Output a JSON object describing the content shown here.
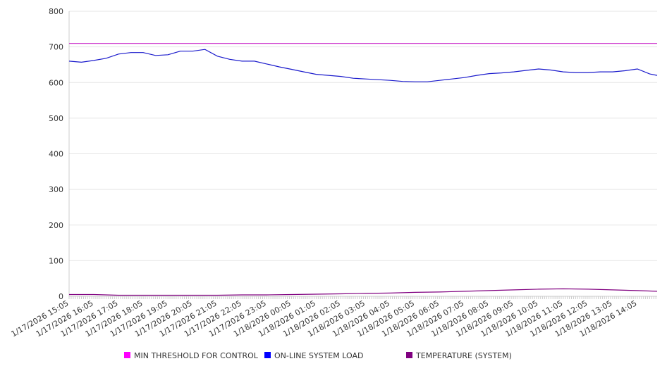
{
  "chart_data": {
    "type": "line",
    "title": "",
    "xlabel": "",
    "ylabel": "",
    "ylim": [
      0,
      800
    ],
    "yticks": [
      0,
      100,
      200,
      300,
      400,
      500,
      600,
      700,
      800
    ],
    "x_unit": "hours since 1/17/2026 15:05",
    "xlim": [
      0,
      23.8
    ],
    "xtick_labels": [
      "1/17/2026 15:05",
      "1/17/2026 16:05",
      "1/17/2026 17:05",
      "1/17/2026 18:05",
      "1/17/2026 19:05",
      "1/17/2026 20:05",
      "1/17/2026 21:05",
      "1/17/2026 22:05",
      "1/17/2026 23:05",
      "1/18/2026 00:05",
      "1/18/2026 01:05",
      "1/18/2026 02:05",
      "1/18/2026 03:05",
      "1/18/2026 04:05",
      "1/18/2026 05:05",
      "1/18/2026 06:05",
      "1/18/2026 07:05",
      "1/18/2026 08:05",
      "1/18/2026 09:05",
      "1/18/2026 10:05",
      "1/18/2026 11:05",
      "1/18/2026 12:05",
      "1/18/2026 13:05",
      "1/18/2026 14:05"
    ],
    "grid": true,
    "legend_position": "bottom",
    "series": [
      {
        "name": "MIN THRESHOLD FOR CONTROL",
        "color": "#ff00ff",
        "line_color": "#cc33cc",
        "x": [
          0,
          23.8
        ],
        "values": [
          710,
          710
        ]
      },
      {
        "name": "ON-LINE SYSTEM LOAD",
        "color": "#0000ff",
        "line_color": "#1a1acc",
        "x": [
          0,
          0.5,
          1,
          1.5,
          2,
          2.5,
          3,
          3.5,
          4,
          4.5,
          5,
          5.5,
          6,
          6.5,
          7,
          7.5,
          8,
          8.5,
          9,
          9.5,
          10,
          10.5,
          11,
          11.5,
          12,
          12.5,
          13,
          13.5,
          14,
          14.5,
          15,
          15.5,
          16,
          16.5,
          17,
          17.5,
          18,
          18.5,
          19,
          19.5,
          20,
          20.5,
          21,
          21.5,
          22,
          22.5,
          23,
          23.5,
          23.8
        ],
        "values": [
          660,
          657,
          662,
          668,
          680,
          684,
          684,
          676,
          678,
          688,
          688,
          693,
          674,
          665,
          660,
          660,
          652,
          644,
          637,
          630,
          623,
          620,
          617,
          612,
          610,
          608,
          606,
          603,
          602,
          602,
          606,
          610,
          614,
          620,
          625,
          627,
          630,
          634,
          638,
          635,
          630,
          628,
          628,
          630,
          630,
          633,
          638,
          624,
          620
        ]
      },
      {
        "name": "TEMPERATURE (SYSTEM)",
        "color": "#800080",
        "line_color": "#800080",
        "x": [
          0,
          1,
          2,
          3,
          4,
          5,
          6,
          7,
          8,
          9,
          10,
          11,
          12,
          13,
          14,
          15,
          16,
          17,
          18,
          19,
          20,
          21,
          22,
          23,
          23.8
        ],
        "values": [
          5,
          5,
          3,
          3,
          3,
          3,
          3,
          4,
          4,
          5,
          6,
          7,
          8,
          9,
          11,
          12,
          14,
          16,
          18,
          20,
          21,
          20,
          18,
          16,
          14
        ]
      }
    ]
  }
}
